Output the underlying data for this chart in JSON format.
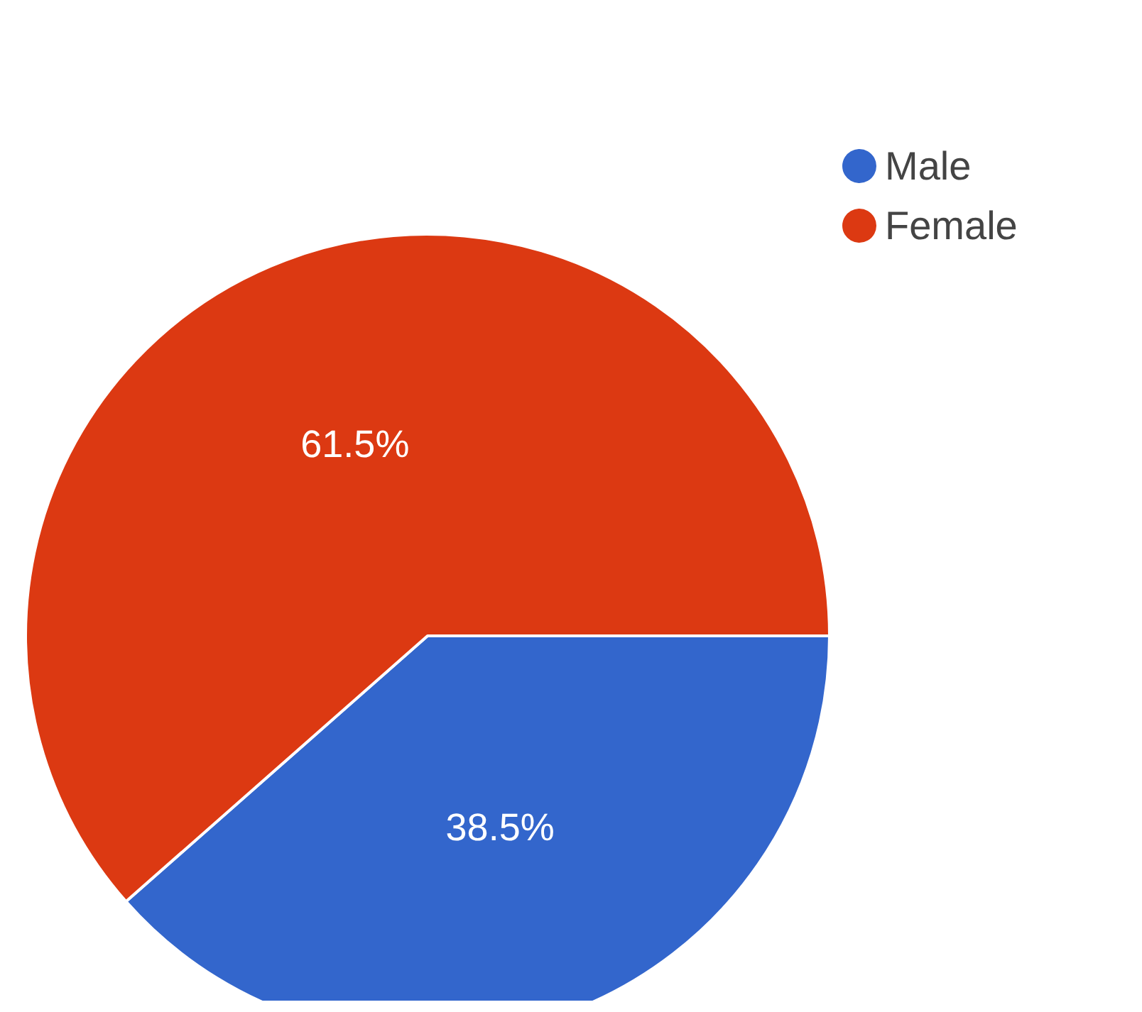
{
  "chart_data": {
    "type": "pie",
    "categories": [
      "Male",
      "Female"
    ],
    "values": [
      38.5,
      61.5
    ],
    "colors": [
      "#3366cc",
      "#dc3912"
    ],
    "value_labels": [
      "38.5%",
      "61.5%"
    ],
    "legend": "top right"
  }
}
